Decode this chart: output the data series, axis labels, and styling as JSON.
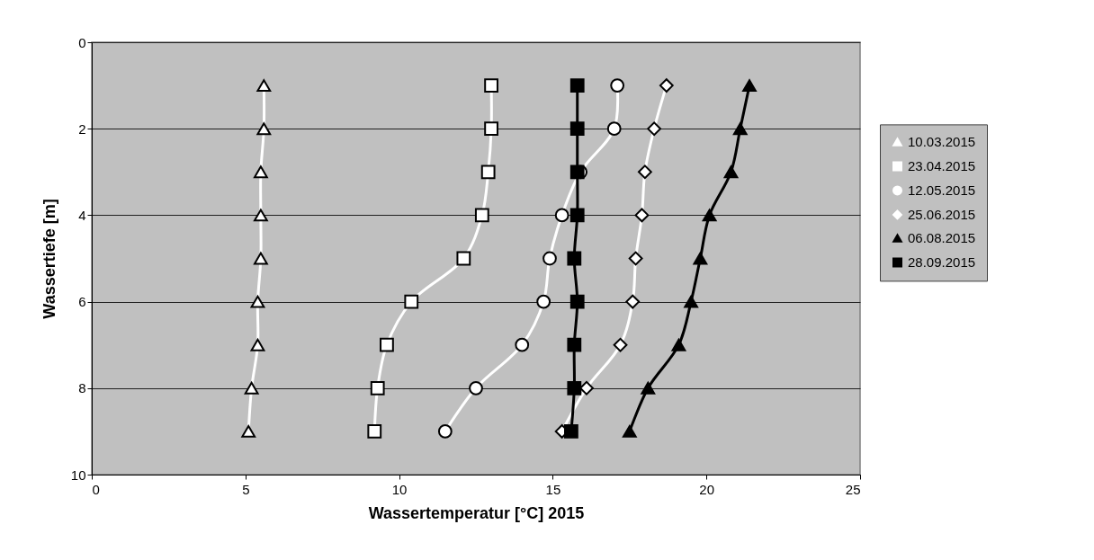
{
  "chart_data": {
    "type": "line",
    "xlabel": "Wassertemperatur [°C] 2015",
    "ylabel": "Wassertiefe [m]",
    "xlim": [
      0,
      25
    ],
    "xticks": [
      0,
      5,
      10,
      15,
      20,
      25
    ],
    "ylim": [
      10,
      0
    ],
    "yticks": [
      0,
      2,
      4,
      6,
      8,
      10
    ],
    "grid": "y",
    "legend": "right",
    "series": [
      {
        "name": "10.03.2015",
        "color": "#ffffff",
        "marker": "triangle",
        "x": [
          5.6,
          5.6,
          5.5,
          5.5,
          5.5,
          5.4,
          5.4,
          5.2,
          5.1
        ],
        "values": [
          1,
          2,
          3,
          4,
          5,
          6,
          7,
          8,
          9
        ]
      },
      {
        "name": "23.04.2015",
        "color": "#ffffff",
        "marker": "square",
        "x": [
          13.0,
          13.0,
          12.9,
          12.7,
          12.1,
          10.4,
          9.6,
          9.3,
          9.2
        ],
        "values": [
          1,
          2,
          3,
          4,
          5,
          6,
          7,
          8,
          9
        ]
      },
      {
        "name": "12.05.2015",
        "color": "#ffffff",
        "marker": "circle",
        "x": [
          17.1,
          17.0,
          15.9,
          15.3,
          14.9,
          14.7,
          14.0,
          12.5,
          11.5
        ],
        "values": [
          1,
          2,
          3,
          4,
          5,
          6,
          7,
          8,
          9
        ]
      },
      {
        "name": "25.06.2015",
        "color": "#ffffff",
        "marker": "diamond",
        "x": [
          18.7,
          18.3,
          18.0,
          17.9,
          17.7,
          17.6,
          17.2,
          16.1,
          15.3
        ],
        "values": [
          1,
          2,
          3,
          4,
          5,
          6,
          7,
          8,
          9
        ]
      },
      {
        "name": "06.08.2015",
        "color": "#000000",
        "marker": "triangle",
        "x": [
          21.4,
          21.1,
          20.8,
          20.1,
          19.8,
          19.5,
          19.1,
          18.1,
          17.5
        ],
        "values": [
          1,
          2,
          3,
          4,
          5,
          6,
          7,
          8,
          9
        ]
      },
      {
        "name": "28.09.2015",
        "color": "#000000",
        "marker": "square",
        "x": [
          15.8,
          15.8,
          15.8,
          15.8,
          15.7,
          15.8,
          15.7,
          15.7,
          15.6
        ],
        "values": [
          1,
          2,
          3,
          4,
          5,
          6,
          7,
          8,
          9
        ]
      }
    ]
  }
}
